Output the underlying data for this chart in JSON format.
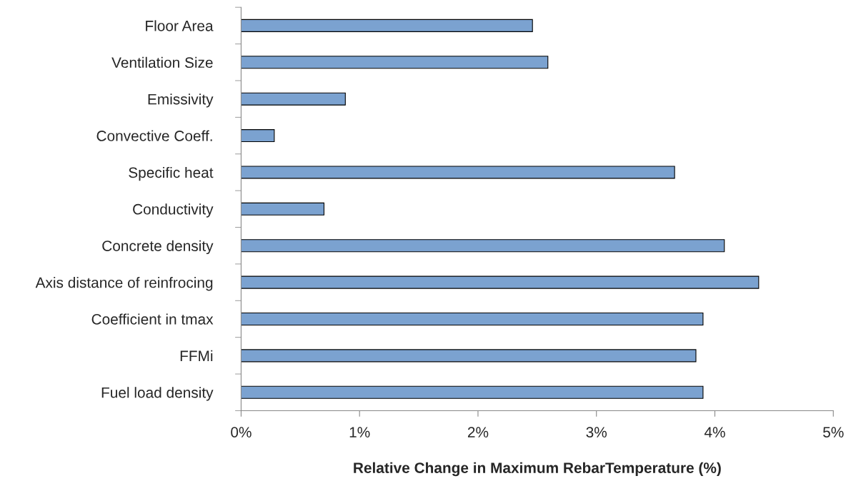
{
  "chart_data": {
    "type": "bar",
    "orientation": "horizontal",
    "xlabel": "Relative Change in Maximum RebarTemperature (%)",
    "categories": [
      "Floor Area",
      "Ventilation Size",
      "Emissivity",
      "Convective Coeff.",
      "Specific heat",
      "Conductivity",
      "Concrete density",
      "Axis distance of reinfrocing",
      "Coefficient in tmax",
      "FFMi",
      "Fuel load density"
    ],
    "values": [
      2.46,
      2.59,
      0.88,
      0.28,
      3.66,
      0.7,
      4.08,
      4.37,
      3.9,
      3.84,
      3.9
    ],
    "color": "#7ba2d0",
    "xlim": [
      0,
      5
    ],
    "xticks": [
      {
        "value": 0,
        "label": "0%"
      },
      {
        "value": 1,
        "label": "1%"
      },
      {
        "value": 2,
        "label": "2%"
      },
      {
        "value": 3,
        "label": "3%"
      },
      {
        "value": 4,
        "label": "4%"
      },
      {
        "value": 5,
        "label": "5%"
      }
    ],
    "grid": false,
    "legend": false
  }
}
